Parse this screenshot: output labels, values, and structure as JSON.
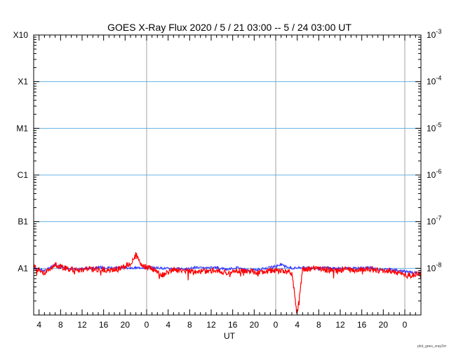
{
  "chart_data": {
    "type": "line",
    "title": "GOES X-Ray Flux   2020 /  5 / 21   03:00 --  5 / 24   03:00   UT",
    "xlabel": "UT",
    "credit": "plot_goes_xray2m",
    "x_tick_labels": [
      "4",
      "8",
      "12",
      "16",
      "20",
      "0",
      "4",
      "8",
      "12",
      "16",
      "20",
      "0",
      "4",
      "8",
      "12",
      "16",
      "20",
      "0"
    ],
    "x_tick_hours": [
      4,
      8,
      12,
      16,
      20,
      24,
      28,
      32,
      36,
      40,
      44,
      48,
      52,
      56,
      60,
      64,
      68,
      72
    ],
    "x_hours_since_start_of_day": [
      3,
      75
    ],
    "day_boundaries_hours": [
      24,
      48,
      72
    ],
    "ylabel_left": [
      {
        "label": "X10",
        "exp": -3
      },
      {
        "label": "X1",
        "exp": -4
      },
      {
        "label": "M1",
        "exp": -5
      },
      {
        "label": "C1",
        "exp": -6
      },
      {
        "label": "B1",
        "exp": -7
      },
      {
        "label": "A1",
        "exp": -8
      }
    ],
    "ylabel_right": [
      {
        "base": "10",
        "exp": "-3",
        "value": -3
      },
      {
        "base": "10",
        "exp": "-4",
        "value": -4
      },
      {
        "base": "10",
        "exp": "-5",
        "value": -5
      },
      {
        "base": "10",
        "exp": "-6",
        "value": -6
      },
      {
        "base": "10",
        "exp": "-7",
        "value": -7
      },
      {
        "base": "10",
        "exp": "-8",
        "value": -8
      }
    ],
    "y_log_range": [
      -9,
      -3
    ],
    "grid": true,
    "colors": {
      "long_channel": "#ff0000",
      "short_channel": "#3333ff",
      "grid_flare_levels": "#66b3e6",
      "day_lines": "#a0a0a0"
    },
    "series": [
      {
        "color": "#3333ff",
        "x_hours": [
          3,
          5,
          7,
          9,
          11,
          13,
          15,
          17,
          19,
          21,
          23,
          25,
          27,
          29,
          31,
          33,
          35,
          37,
          39,
          41,
          43,
          45,
          47,
          49,
          51,
          53,
          55,
          57,
          59,
          61,
          63,
          65,
          67,
          69,
          71,
          73,
          75
        ],
        "log_flux": [
          -8.0,
          -8.05,
          -7.92,
          -8.0,
          -8.02,
          -8.0,
          -7.98,
          -7.98,
          -7.98,
          -8.0,
          -7.98,
          -7.98,
          -8.0,
          -8.0,
          -8.02,
          -7.98,
          -8.0,
          -7.98,
          -8.02,
          -7.98,
          -8.05,
          -8.02,
          -7.98,
          -7.92,
          -8.0,
          -7.98,
          -8.0,
          -7.98,
          -8.0,
          -8.0,
          -8.0,
          -7.98,
          -8.02,
          -8.02,
          -8.05,
          -8.08,
          -8.1
        ]
      },
      {
        "color": "#ff0000",
        "x_hours": [
          3,
          5,
          7,
          9,
          11,
          13,
          15,
          17,
          19,
          21,
          22,
          23,
          25,
          27,
          29,
          31,
          33,
          35,
          37,
          39,
          41,
          43,
          45,
          47,
          49,
          51,
          52,
          53,
          55,
          57,
          59,
          61,
          63,
          65,
          67,
          69,
          71,
          73,
          75
        ],
        "log_flux": [
          -7.95,
          -8.1,
          -7.92,
          -8.0,
          -8.05,
          -8.0,
          -8.02,
          -8.05,
          -8.0,
          -7.9,
          -7.7,
          -7.95,
          -8.0,
          -8.15,
          -8.02,
          -8.05,
          -8.08,
          -8.05,
          -8.05,
          -8.1,
          -8.05,
          -8.05,
          -8.1,
          -8.05,
          -8.05,
          -8.1,
          -9.0,
          -8.02,
          -8.0,
          -8.02,
          -8.05,
          -8.02,
          -8.05,
          -8.0,
          -8.05,
          -8.05,
          -8.1,
          -8.15,
          -8.1
        ]
      }
    ]
  }
}
